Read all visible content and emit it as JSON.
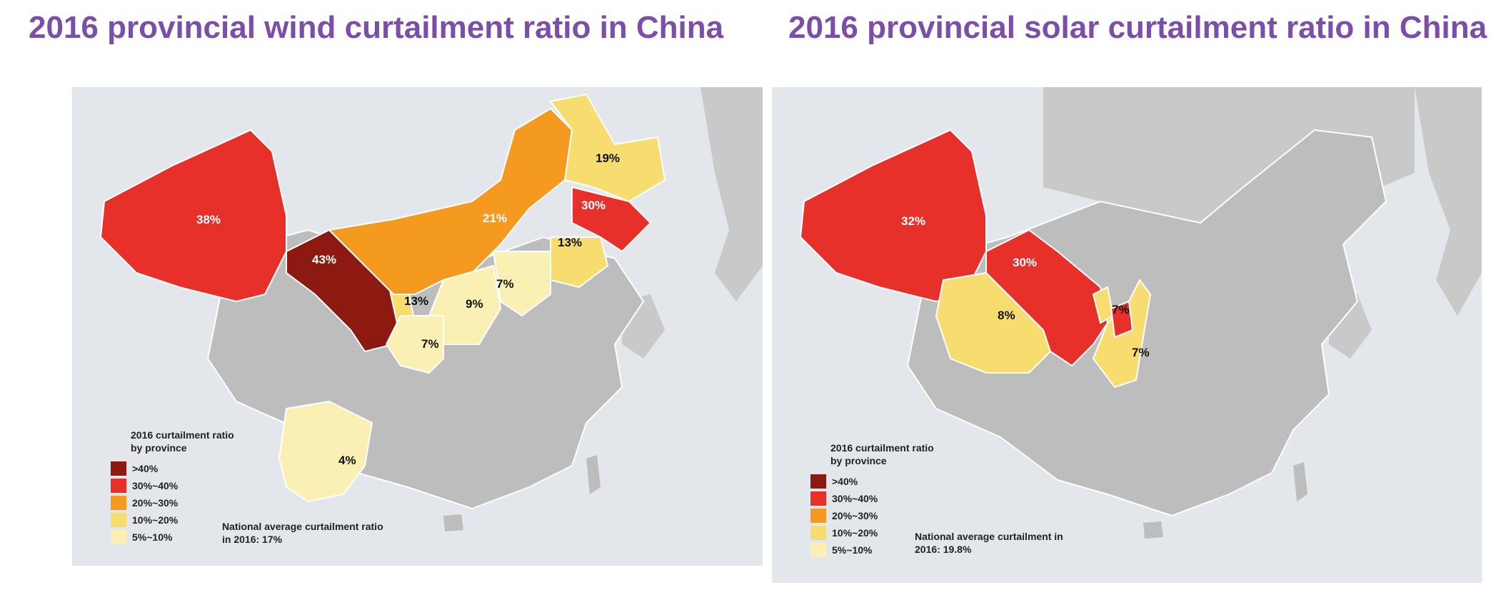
{
  "colors": {
    "gt40": "#8c1a10",
    "r30_40": "#e8302a",
    "r20_30": "#f49a1e",
    "r10_20": "#f7dc6f",
    "r5_10": "#fbf0b3",
    "other_province": "#bdbdbd",
    "neighbor": "#c9c9c9",
    "background": "#e3e6ea",
    "title": "#7b4fa8"
  },
  "maps": [
    {
      "title": "2016 provincial wind curtailment ratio in China",
      "legend": {
        "title": "2016 curtailment ratio by province",
        "items": [
          ">40%",
          "30%~40%",
          "20%~30%",
          "10%~20%",
          "5%~10%"
        ]
      },
      "note": "National average curtailment ratio in 2016: 17%",
      "labels": [
        "38%",
        "43%",
        "21%",
        "19%",
        "30%",
        "13%",
        "7%",
        "9%",
        "13%",
        "7%",
        "4%"
      ]
    },
    {
      "title": "2016 provincial solar curtailment ratio in China",
      "legend": {
        "title": "2016 curtailment ratio by province",
        "items": [
          ">40%",
          "30%~40%",
          "20%~30%",
          "10%~20%",
          "5%~10%"
        ]
      },
      "note": "National average curtailment in 2016: 19.8%",
      "labels": [
        "32%",
        "30%",
        "8%",
        "7%",
        "7%"
      ]
    }
  ]
}
